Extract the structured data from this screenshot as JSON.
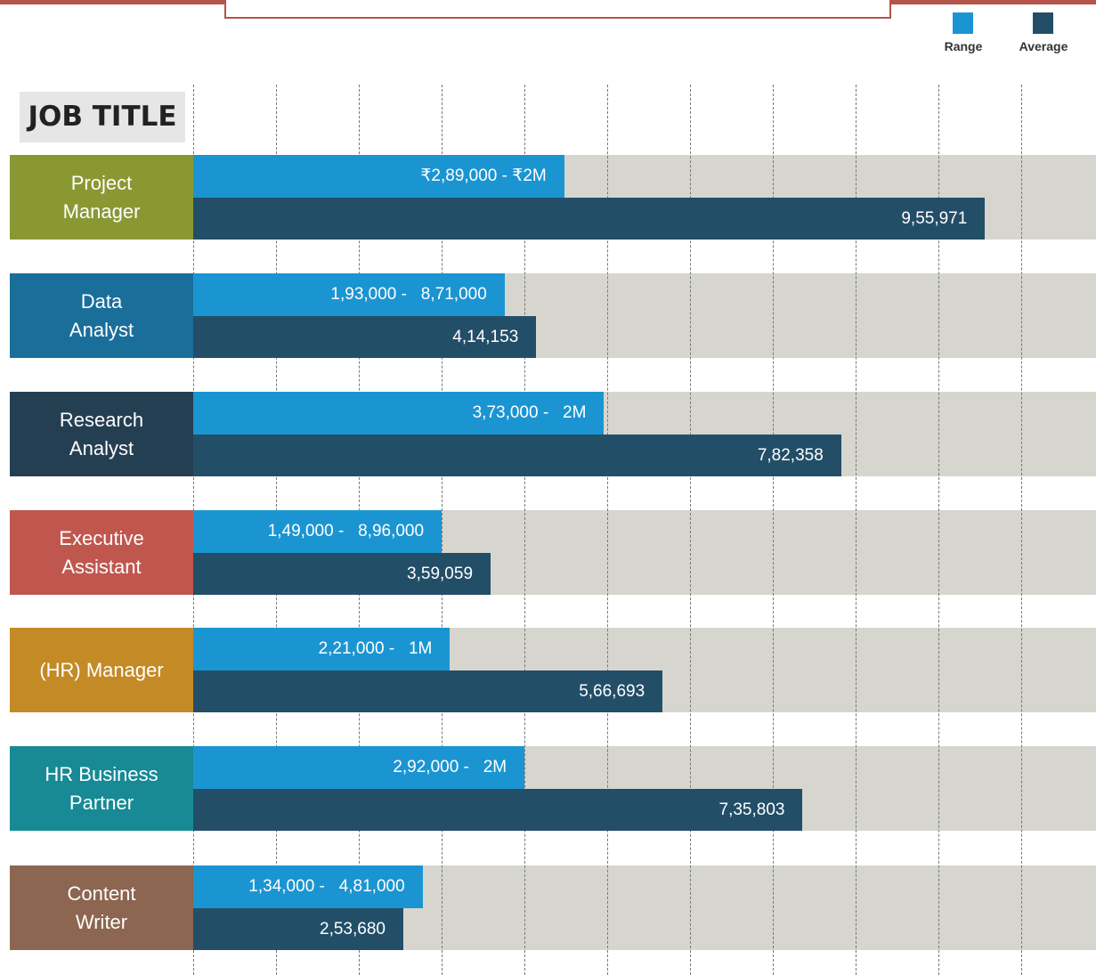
{
  "chart_data": {
    "type": "bar",
    "title": "JOB TITLE",
    "categories": [
      "Project\nManager",
      "Data\nAnalyst",
      "Research\nAnalyst",
      "Executive\nAssistant",
      "(HR) Manager",
      "HR Business\nPartner",
      "Content\nWriter"
    ],
    "category_colors": [
      "#8a9833",
      "#1a6e9a",
      "#253f52",
      "#c0574f",
      "#c48a25",
      "#178a96",
      "#8c6650"
    ],
    "xlim": [
      0,
      1090000
    ],
    "series": [
      {
        "name": "Range",
        "color": "#1b95d2",
        "values": [
          448000,
          376000,
          496000,
          300000,
          310000,
          400000,
          277000
        ],
        "value_labels": [
          "₹2,89,000 - ₹2M",
          "1,93,000 -   8,71,000",
          "3,73,000 -   2M",
          "1,49,000 -   8,96,000",
          "2,21,000 -   1M",
          "2,92,000 -   2M",
          "1,34,000 -   4,81,000"
        ]
      },
      {
        "name": "Average",
        "color": "#234e68",
        "values": [
          955971,
          414153,
          782358,
          359059,
          566693,
          735803,
          253680
        ],
        "value_labels": [
          "9,55,971",
          "4,14,153",
          "7,82,358",
          "3,59,059",
          "5,66,693",
          "7,35,803",
          "2,53,680"
        ]
      }
    ]
  }
}
